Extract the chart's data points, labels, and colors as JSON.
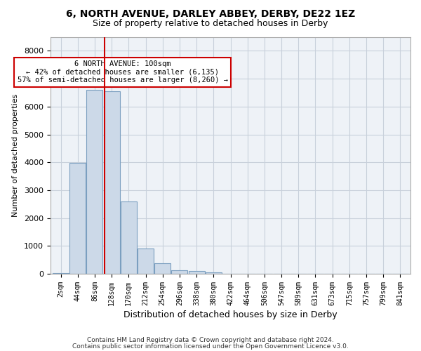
{
  "title1": "6, NORTH AVENUE, DARLEY ABBEY, DERBY, DE22 1EZ",
  "title2": "Size of property relative to detached houses in Derby",
  "xlabel": "Distribution of detached houses by size in Derby",
  "ylabel": "Number of detached properties",
  "footer1": "Contains HM Land Registry data © Crown copyright and database right 2024.",
  "footer2": "Contains public sector information licensed under the Open Government Licence v3.0.",
  "bar_color": "#ccd9e8",
  "bar_edge_color": "#7b9fc0",
  "grid_color": "#c8d0db",
  "bg_color": "#eef2f7",
  "bins": [
    "2sqm",
    "44sqm",
    "86sqm",
    "128sqm",
    "170sqm",
    "212sqm",
    "254sqm",
    "296sqm",
    "338sqm",
    "380sqm",
    "422sqm",
    "464sqm",
    "506sqm",
    "547sqm",
    "589sqm",
    "631sqm",
    "673sqm",
    "715sqm",
    "757sqm",
    "799sqm",
    "841sqm"
  ],
  "values": [
    30,
    3980,
    6600,
    6550,
    2600,
    920,
    380,
    135,
    95,
    55,
    0,
    0,
    0,
    0,
    0,
    0,
    0,
    0,
    0,
    0,
    0
  ],
  "ylim": [
    0,
    8500
  ],
  "yticks": [
    0,
    1000,
    2000,
    3000,
    4000,
    5000,
    6000,
    7000,
    8000
  ],
  "red_line_x": 2.6,
  "annotation_text": "6 NORTH AVENUE: 100sqm\n← 42% of detached houses are smaller (6,135)\n57% of semi-detached houses are larger (8,260) →",
  "annotation_box_color": "#ffffff",
  "annotation_border_color": "#cc0000",
  "red_line_color": "#cc0000"
}
